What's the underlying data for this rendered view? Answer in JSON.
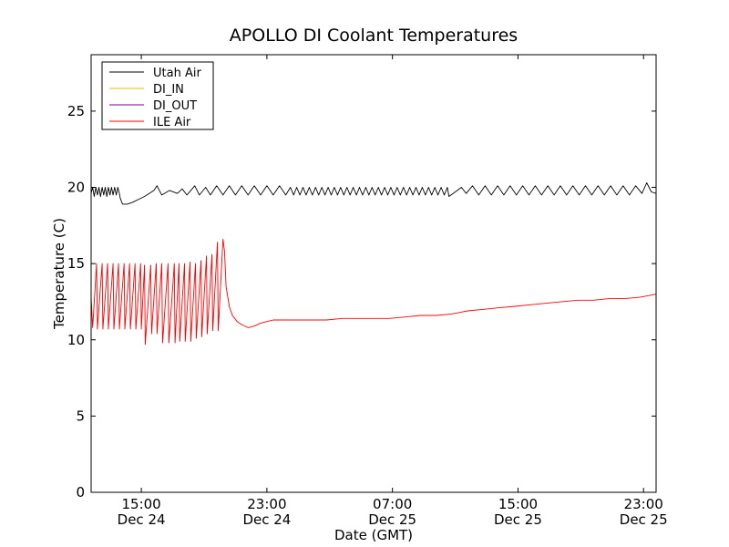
{
  "chart_data": {
    "type": "line",
    "title": "APOLLO DI Coolant Temperatures",
    "xlabel": "Date (GMT)",
    "ylabel": "Temperature (C)",
    "ylim": [
      0,
      28.7
    ],
    "xlim_hours": [
      0,
      36
    ],
    "y_ticks": [
      "0",
      "5",
      "10",
      "15",
      "20",
      "25"
    ],
    "y_tick_values": [
      0,
      5,
      10,
      15,
      20,
      25
    ],
    "x_ticks": [
      {
        "hours": 3.2,
        "time": "15:00",
        "date": "Dec 24"
      },
      {
        "hours": 11.2,
        "time": "23:00",
        "date": "Dec 24"
      },
      {
        "hours": 19.2,
        "time": "07:00",
        "date": "Dec 25"
      },
      {
        "hours": 27.2,
        "time": "15:00",
        "date": "Dec 25"
      },
      {
        "hours": 35.2,
        "time": "23:00",
        "date": "Dec 25"
      }
    ],
    "legend_position": "top-left",
    "series": [
      {
        "name": "Utah Air",
        "color": "#000000",
        "points": [
          [
            0.0,
            19.6
          ],
          [
            0.1,
            20.0
          ],
          [
            0.2,
            19.4
          ],
          [
            0.3,
            20.0
          ],
          [
            0.4,
            19.5
          ],
          [
            0.5,
            20.0
          ],
          [
            0.6,
            19.4
          ],
          [
            0.7,
            20.0
          ],
          [
            0.8,
            19.5
          ],
          [
            0.9,
            20.0
          ],
          [
            1.0,
            19.4
          ],
          [
            1.1,
            20.0
          ],
          [
            1.2,
            19.5
          ],
          [
            1.3,
            20.0
          ],
          [
            1.4,
            19.5
          ],
          [
            1.5,
            20.0
          ],
          [
            1.6,
            19.5
          ],
          [
            1.7,
            20.0
          ],
          [
            1.8,
            19.6
          ],
          [
            1.85,
            19.3
          ],
          [
            2.0,
            18.9
          ],
          [
            2.3,
            18.9
          ],
          [
            2.6,
            19.0
          ],
          [
            3.0,
            19.2
          ],
          [
            3.4,
            19.4
          ],
          [
            3.7,
            19.6
          ],
          [
            4.0,
            19.8
          ],
          [
            4.2,
            20.1
          ],
          [
            4.5,
            19.5
          ],
          [
            5.0,
            19.8
          ],
          [
            5.5,
            19.6
          ],
          [
            5.8,
            19.9
          ],
          [
            6.1,
            19.5
          ],
          [
            6.6,
            20.1
          ],
          [
            6.9,
            19.5
          ],
          [
            7.3,
            20.0
          ],
          [
            7.6,
            19.5
          ],
          [
            8.0,
            20.1
          ],
          [
            8.4,
            19.5
          ],
          [
            8.8,
            20.1
          ],
          [
            9.2,
            19.5
          ],
          [
            9.6,
            20.1
          ],
          [
            10.0,
            19.5
          ],
          [
            10.4,
            20.1
          ],
          [
            10.8,
            19.5
          ],
          [
            11.2,
            20.1
          ],
          [
            11.6,
            19.5
          ],
          [
            12.0,
            20.1
          ],
          [
            12.4,
            19.5
          ],
          [
            12.7,
            20.0
          ],
          [
            12.9,
            19.5
          ],
          [
            13.1,
            20.0
          ],
          [
            13.3,
            19.5
          ],
          [
            13.5,
            20.0
          ],
          [
            13.7,
            19.5
          ],
          [
            13.9,
            20.0
          ],
          [
            14.1,
            19.5
          ],
          [
            14.3,
            20.0
          ],
          [
            14.5,
            19.5
          ],
          [
            14.7,
            20.0
          ],
          [
            14.9,
            19.5
          ],
          [
            15.1,
            20.0
          ],
          [
            15.3,
            19.5
          ],
          [
            15.5,
            20.0
          ],
          [
            15.7,
            19.5
          ],
          [
            15.9,
            20.0
          ],
          [
            16.1,
            19.5
          ],
          [
            16.3,
            20.0
          ],
          [
            16.5,
            19.5
          ],
          [
            16.7,
            20.0
          ],
          [
            16.9,
            19.5
          ],
          [
            17.1,
            20.0
          ],
          [
            17.3,
            19.5
          ],
          [
            17.5,
            20.0
          ],
          [
            17.7,
            19.5
          ],
          [
            17.9,
            20.0
          ],
          [
            18.1,
            19.5
          ],
          [
            18.3,
            20.0
          ],
          [
            18.5,
            19.5
          ],
          [
            18.7,
            20.0
          ],
          [
            18.9,
            19.5
          ],
          [
            19.1,
            20.0
          ],
          [
            19.3,
            19.5
          ],
          [
            19.5,
            20.0
          ],
          [
            19.7,
            19.5
          ],
          [
            19.9,
            20.0
          ],
          [
            20.1,
            19.5
          ],
          [
            20.3,
            20.0
          ],
          [
            20.5,
            19.5
          ],
          [
            20.7,
            20.0
          ],
          [
            20.9,
            19.5
          ],
          [
            21.1,
            20.0
          ],
          [
            21.3,
            19.5
          ],
          [
            21.5,
            20.0
          ],
          [
            21.7,
            19.5
          ],
          [
            21.9,
            20.0
          ],
          [
            22.1,
            19.5
          ],
          [
            22.3,
            20.0
          ],
          [
            22.5,
            19.5
          ],
          [
            22.7,
            20.0
          ],
          [
            22.8,
            19.4
          ],
          [
            23.2,
            19.7
          ],
          [
            23.6,
            20.0
          ],
          [
            23.9,
            19.6
          ],
          [
            24.3,
            20.1
          ],
          [
            24.7,
            19.5
          ],
          [
            25.1,
            20.1
          ],
          [
            25.5,
            19.5
          ],
          [
            25.9,
            20.1
          ],
          [
            26.3,
            19.5
          ],
          [
            26.7,
            20.1
          ],
          [
            27.1,
            19.5
          ],
          [
            27.5,
            20.1
          ],
          [
            27.9,
            19.5
          ],
          [
            28.3,
            20.1
          ],
          [
            28.7,
            19.5
          ],
          [
            29.1,
            20.1
          ],
          [
            29.5,
            19.5
          ],
          [
            29.9,
            20.1
          ],
          [
            30.3,
            19.5
          ],
          [
            30.7,
            20.1
          ],
          [
            31.1,
            19.5
          ],
          [
            31.5,
            20.1
          ],
          [
            31.9,
            19.5
          ],
          [
            32.3,
            20.1
          ],
          [
            32.7,
            19.5
          ],
          [
            33.1,
            20.1
          ],
          [
            33.5,
            19.5
          ],
          [
            33.9,
            20.1
          ],
          [
            34.3,
            19.5
          ],
          [
            34.7,
            20.1
          ],
          [
            35.1,
            19.6
          ],
          [
            35.4,
            20.3
          ],
          [
            35.7,
            19.7
          ],
          [
            36.0,
            19.6
          ]
        ]
      },
      {
        "name": "DI_IN",
        "color": "#f5b800",
        "points": []
      },
      {
        "name": "DI_OUT",
        "color": "#800080",
        "points": []
      },
      {
        "name": "ILE Air",
        "color": "#ff0000",
        "points": [
          [
            0.0,
            12.8
          ],
          [
            0.1,
            10.8
          ],
          [
            0.35,
            15.0
          ],
          [
            0.4,
            10.7
          ],
          [
            0.7,
            15.0
          ],
          [
            0.75,
            10.7
          ],
          [
            1.05,
            15.0
          ],
          [
            1.1,
            10.7
          ],
          [
            1.4,
            15.0
          ],
          [
            1.45,
            10.7
          ],
          [
            1.75,
            15.0
          ],
          [
            1.8,
            10.7
          ],
          [
            2.1,
            15.0
          ],
          [
            2.15,
            10.7
          ],
          [
            2.45,
            15.0
          ],
          [
            2.5,
            10.7
          ],
          [
            2.8,
            15.0
          ],
          [
            2.85,
            10.7
          ],
          [
            3.15,
            15.0
          ],
          [
            3.2,
            10.7
          ],
          [
            3.4,
            14.9
          ],
          [
            3.45,
            9.7
          ],
          [
            3.8,
            14.9
          ],
          [
            3.85,
            10.4
          ],
          [
            4.15,
            15.0
          ],
          [
            4.2,
            10.4
          ],
          [
            4.5,
            15.0
          ],
          [
            4.55,
            9.8
          ],
          [
            4.9,
            15.0
          ],
          [
            4.95,
            9.8
          ],
          [
            5.3,
            15.0
          ],
          [
            5.35,
            9.8
          ],
          [
            5.6,
            15.0
          ],
          [
            5.65,
            9.9
          ],
          [
            5.95,
            15.0
          ],
          [
            6.0,
            9.9
          ],
          [
            6.3,
            15.1
          ],
          [
            6.35,
            9.9
          ],
          [
            6.65,
            15.0
          ],
          [
            6.7,
            10.1
          ],
          [
            7.0,
            15.2
          ],
          [
            7.05,
            10.2
          ],
          [
            7.35,
            15.5
          ],
          [
            7.4,
            10.4
          ],
          [
            7.7,
            15.6
          ],
          [
            7.75,
            10.6
          ],
          [
            8.05,
            16.4
          ],
          [
            8.1,
            10.6
          ],
          [
            8.4,
            16.6
          ],
          [
            8.5,
            15.8
          ],
          [
            8.6,
            13.5
          ],
          [
            8.8,
            12.2
          ],
          [
            9.0,
            11.6
          ],
          [
            9.3,
            11.2
          ],
          [
            9.6,
            11.0
          ],
          [
            10.0,
            10.8
          ],
          [
            10.4,
            10.9
          ],
          [
            10.8,
            11.1
          ],
          [
            11.2,
            11.2
          ],
          [
            11.6,
            11.3
          ],
          [
            12.0,
            11.3
          ],
          [
            12.6,
            11.3
          ],
          [
            13.2,
            11.3
          ],
          [
            14.0,
            11.3
          ],
          [
            15.0,
            11.3
          ],
          [
            16.0,
            11.4
          ],
          [
            17.0,
            11.4
          ],
          [
            18.0,
            11.4
          ],
          [
            19.0,
            11.4
          ],
          [
            20.0,
            11.5
          ],
          [
            21.0,
            11.6
          ],
          [
            22.0,
            11.6
          ],
          [
            23.0,
            11.7
          ],
          [
            24.0,
            11.9
          ],
          [
            25.0,
            12.0
          ],
          [
            26.0,
            12.1
          ],
          [
            27.0,
            12.2
          ],
          [
            28.0,
            12.3
          ],
          [
            29.0,
            12.4
          ],
          [
            30.0,
            12.5
          ],
          [
            31.0,
            12.6
          ],
          [
            32.0,
            12.6
          ],
          [
            33.0,
            12.7
          ],
          [
            34.0,
            12.7
          ],
          [
            35.0,
            12.8
          ],
          [
            35.5,
            12.9
          ],
          [
            36.0,
            13.0
          ]
        ]
      }
    ]
  }
}
